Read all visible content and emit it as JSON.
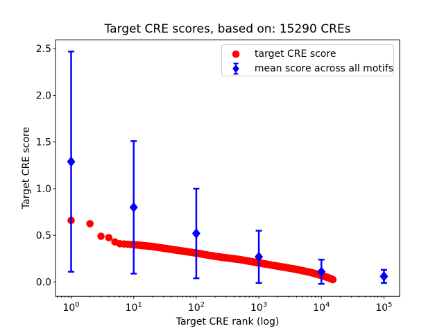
{
  "figure": {
    "background": "#ffffff",
    "frame_color": "#000000"
  },
  "chart_data": {
    "type": "scatter",
    "title": "Target CRE scores, based on: 15290 CREs",
    "xlabel": "Target CRE rank (log)",
    "ylabel": "Target CRE score",
    "n_cres": 15290,
    "x_scale": "log",
    "xlim_log10": [
      -0.25,
      5.25
    ],
    "ylim": [
      -0.154,
      2.594
    ],
    "x_tick_exponents": [
      0,
      1,
      2,
      3,
      4,
      5
    ],
    "y_ticks": [
      0.0,
      0.5,
      1.0,
      1.5,
      2.0,
      2.5
    ],
    "grid": false,
    "legend": {
      "position": "upper right",
      "entries": [
        {
          "label": "target CRE score",
          "marker": "circle",
          "color": "#ff0000"
        },
        {
          "label": "mean score across all motifs",
          "marker": "diamond-errorbar",
          "color": "#0000ff"
        }
      ]
    },
    "series": [
      {
        "name": "target CRE score",
        "marker": "circle",
        "color": "#ff0000",
        "style": "dense-scatter",
        "n_points": 15290,
        "anchors": [
          [
            1,
            0.66
          ],
          [
            2,
            0.625
          ],
          [
            3,
            0.49
          ],
          [
            4,
            0.475
          ],
          [
            5,
            0.43
          ],
          [
            6,
            0.41
          ],
          [
            8,
            0.405
          ],
          [
            10,
            0.4
          ],
          [
            20,
            0.38
          ],
          [
            50,
            0.34
          ],
          [
            100,
            0.31
          ],
          [
            200,
            0.275
          ],
          [
            500,
            0.24
          ],
          [
            1000,
            0.205
          ],
          [
            2000,
            0.17
          ],
          [
            4000,
            0.135
          ],
          [
            7000,
            0.1
          ],
          [
            10000,
            0.07
          ],
          [
            13000,
            0.045
          ],
          [
            15290,
            0.025
          ]
        ]
      },
      {
        "name": "mean score across all motifs",
        "marker": "diamond",
        "color": "#0000ff",
        "style": "errorbar",
        "points": [
          {
            "rank": 1,
            "mean": 1.29,
            "err": 1.18
          },
          {
            "rank": 10,
            "mean": 0.8,
            "err": 0.71
          },
          {
            "rank": 100,
            "mean": 0.52,
            "err": 0.48
          },
          {
            "rank": 1000,
            "mean": 0.27,
            "err": 0.28
          },
          {
            "rank": 10000,
            "mean": 0.11,
            "err": 0.13
          },
          {
            "rank": 100000,
            "mean": 0.06,
            "err": 0.07
          }
        ]
      }
    ]
  }
}
